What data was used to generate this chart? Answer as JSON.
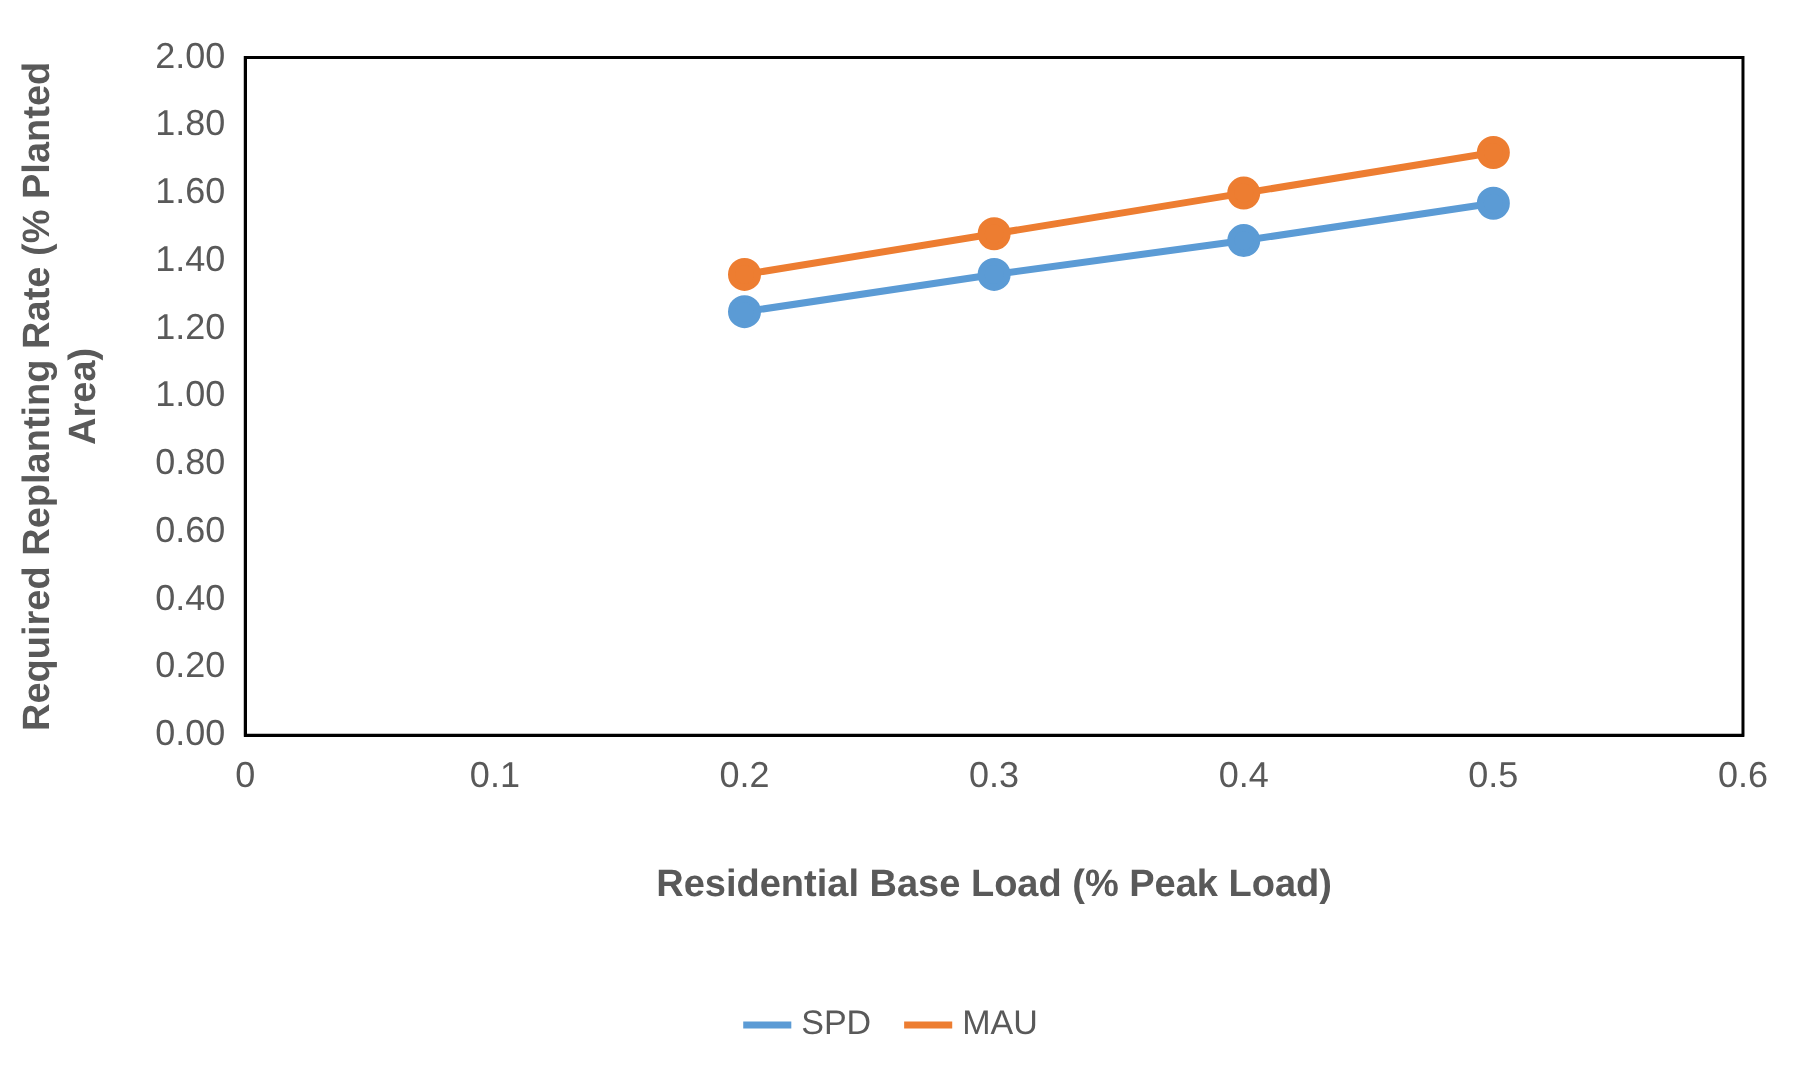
{
  "chart_data": {
    "type": "line",
    "xlabel": "Residential Base Load (% Peak Load)",
    "ylabel": "Required Replanting Rate (% Planted Area)",
    "x": [
      0.2,
      0.3,
      0.4,
      0.5
    ],
    "series": [
      {
        "name": "SPD",
        "color": "#5b9bd5",
        "values": [
          1.25,
          1.36,
          1.46,
          1.57
        ]
      },
      {
        "name": "MAU",
        "color": "#ed7d31",
        "values": [
          1.36,
          1.48,
          1.6,
          1.72
        ]
      }
    ],
    "xlim": [
      0,
      0.6
    ],
    "xticks": [
      0,
      0.1,
      0.2,
      0.3,
      0.4,
      0.5,
      0.6
    ],
    "ylim": [
      0,
      2
    ],
    "yticks": [
      {
        "value": 0,
        "label": "0.00"
      },
      {
        "value": 0.2,
        "label": "0.20"
      },
      {
        "value": 0.4,
        "label": "0.40"
      },
      {
        "value": 0.6,
        "label": "0.60"
      },
      {
        "value": 0.8,
        "label": "0.80"
      },
      {
        "value": 1,
        "label": "1.00"
      },
      {
        "value": 1.2,
        "label": "1.20"
      },
      {
        "value": 1.4,
        "label": "1.40"
      },
      {
        "value": 1.6,
        "label": "1.60"
      },
      {
        "value": 1.8,
        "label": "1.80"
      },
      {
        "value": 2,
        "label": "2.00"
      }
    ],
    "grid": false,
    "legend": "bottom",
    "marker": "circle",
    "line_style": "solid"
  }
}
